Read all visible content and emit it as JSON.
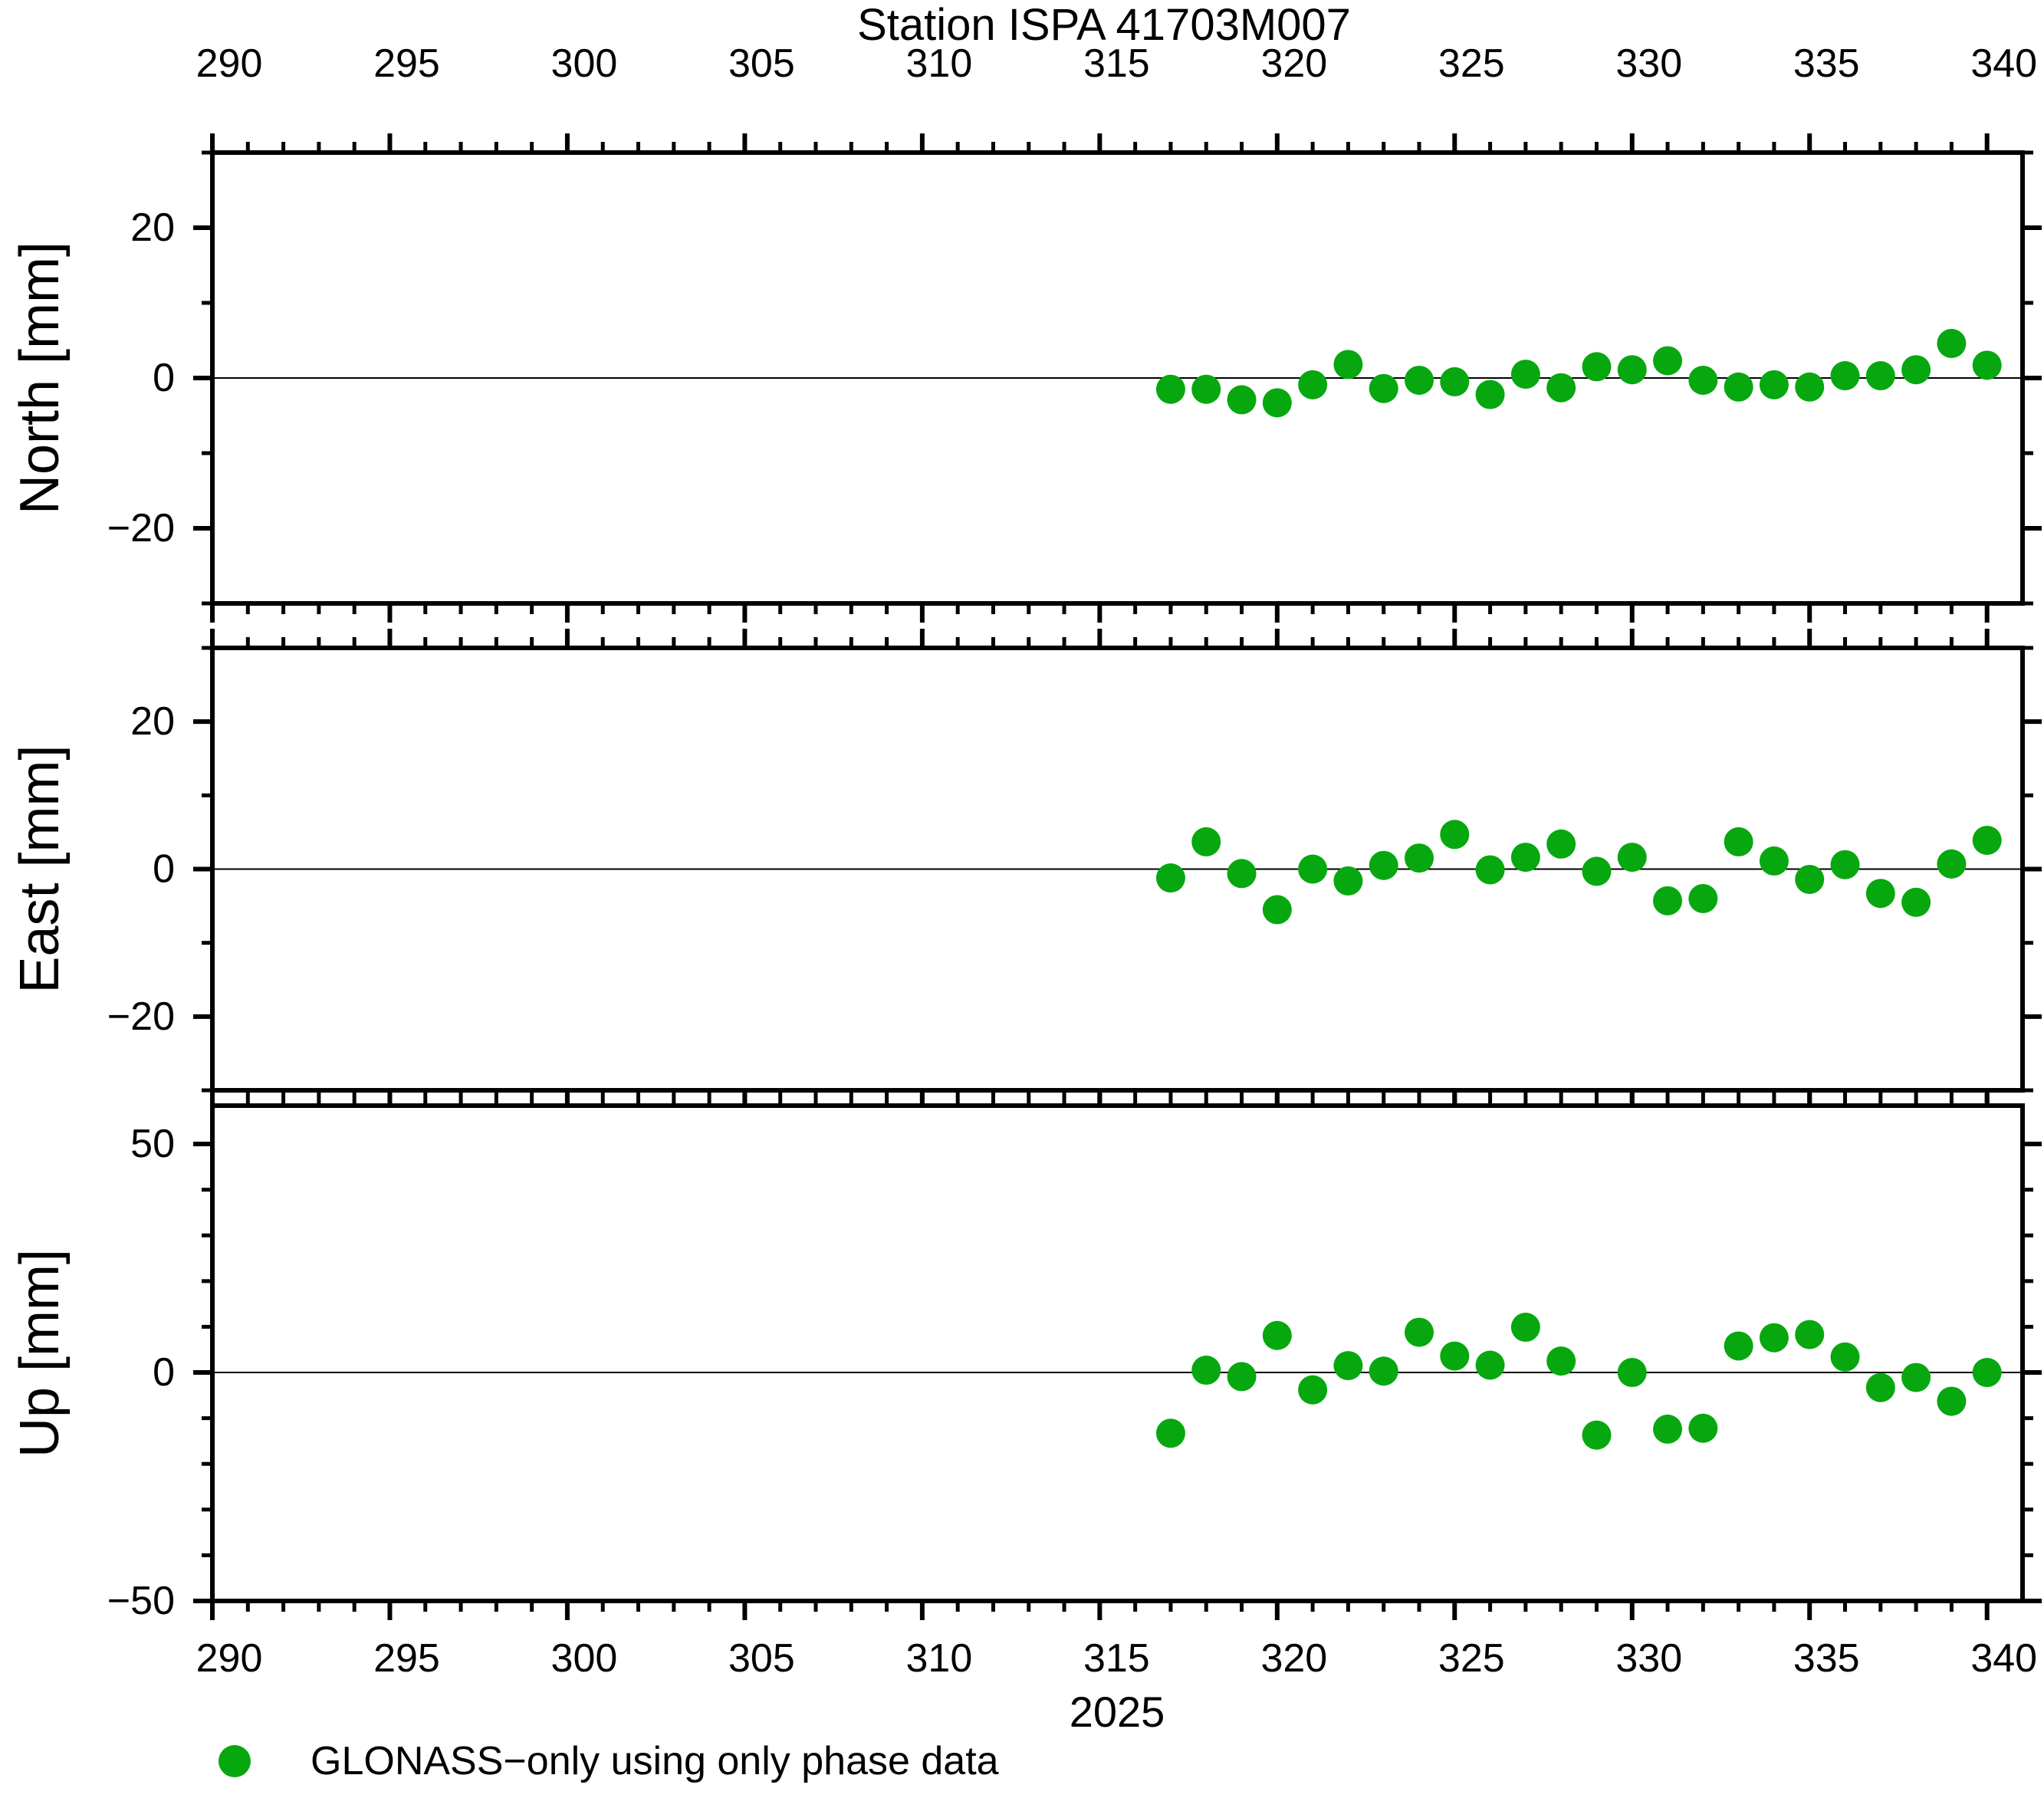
{
  "figure": {
    "title": "Station ISPA 41703M007",
    "year_label": "2025",
    "legend": {
      "label": "GLONASS−only using only phase data",
      "marker_color": "#07A80F"
    }
  },
  "chart_data": {
    "type": "scatter",
    "title": "Station ISPA 41703M007",
    "xlabel": "2025",
    "x_unit": "day of year 2025",
    "xlim": [
      290,
      341
    ],
    "x_major_ticks": [
      290,
      295,
      300,
      305,
      310,
      315,
      320,
      325,
      330,
      335,
      340
    ],
    "x_minor_step": 1,
    "grid": "zero-line-only",
    "legend_position": "bottom-left",
    "legend_label": "GLONASS−only using only phase data",
    "marker": {
      "shape": "circle",
      "color": "#07A80F",
      "radius_px": 19
    },
    "x": [
      317,
      318,
      319,
      320,
      321,
      322,
      323,
      324,
      325,
      326,
      327,
      328,
      329,
      330,
      331,
      332,
      333,
      334,
      335,
      336,
      337,
      338,
      339,
      340
    ],
    "series": [
      {
        "name": "North",
        "ylabel": "North [mm]",
        "ylim": [
          -30,
          30
        ],
        "yticks": [
          -20,
          0,
          20
        ],
        "y_minor_step": 10,
        "values": [
          -1.5,
          -1.5,
          -2.9,
          -3.3,
          -0.9,
          1.8,
          -1.4,
          -0.3,
          -0.5,
          -2.2,
          0.5,
          -1.3,
          1.5,
          1.1,
          2.3,
          -0.3,
          -1.2,
          -0.9,
          -1.2,
          0.3,
          0.3,
          1.1,
          4.6,
          1.7
        ]
      },
      {
        "name": "East",
        "ylabel": "East [mm]",
        "ylim": [
          -30,
          30
        ],
        "yticks": [
          -20,
          0,
          20
        ],
        "y_minor_step": 10,
        "values": [
          -1.2,
          3.7,
          -0.6,
          -5.5,
          0.0,
          -1.6,
          0.5,
          1.5,
          4.7,
          -0.1,
          1.6,
          3.4,
          -0.3,
          1.6,
          -4.3,
          -4.0,
          3.7,
          1.1,
          -1.4,
          0.6,
          -3.3,
          -4.5,
          0.7,
          3.9
        ]
      },
      {
        "name": "Up",
        "ylabel": "Up [mm]",
        "ylim": [
          -50,
          58.4
        ],
        "yticks": [
          -50,
          0,
          50
        ],
        "y_minor_step": 10,
        "values": [
          -13.3,
          0.5,
          -0.9,
          8.1,
          -3.8,
          1.5,
          0.3,
          8.8,
          3.6,
          1.6,
          9.9,
          2.5,
          -13.7,
          0.0,
          -12.4,
          -12.2,
          5.8,
          7.6,
          8.3,
          3.4,
          -3.3,
          -1.1,
          -6.3,
          0.0
        ]
      }
    ]
  }
}
